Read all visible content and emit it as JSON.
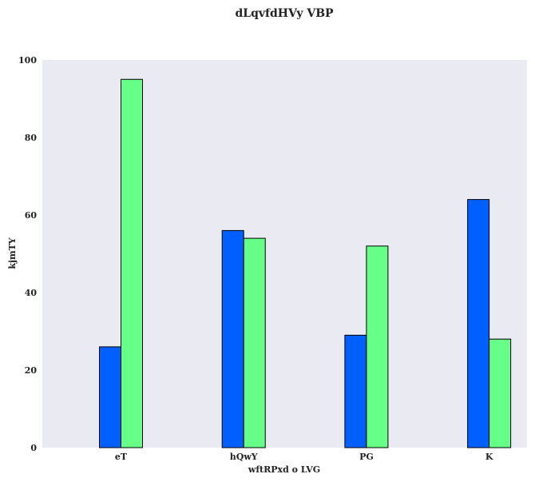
{
  "chart_data": {
    "type": "bar",
    "title": "dLqvfdHVy VBP",
    "xlabel": "wftRPxd o LVG",
    "ylabel": "kjmTY",
    "categories": [
      "eT",
      "hQwY",
      "PG",
      "K"
    ],
    "series": [
      {
        "values": [
          26,
          56,
          29,
          64
        ],
        "color": "#0060ff"
      },
      {
        "values": [
          95,
          54,
          52,
          28
        ],
        "color": "#66ff88"
      }
    ],
    "ylim": [
      0,
      100
    ],
    "yticks": [
      0,
      20,
      40,
      60,
      80,
      100
    ],
    "grid": false,
    "legend": "none",
    "plot_background": "#eaeaf2",
    "bar_edge_color": "#000000"
  }
}
